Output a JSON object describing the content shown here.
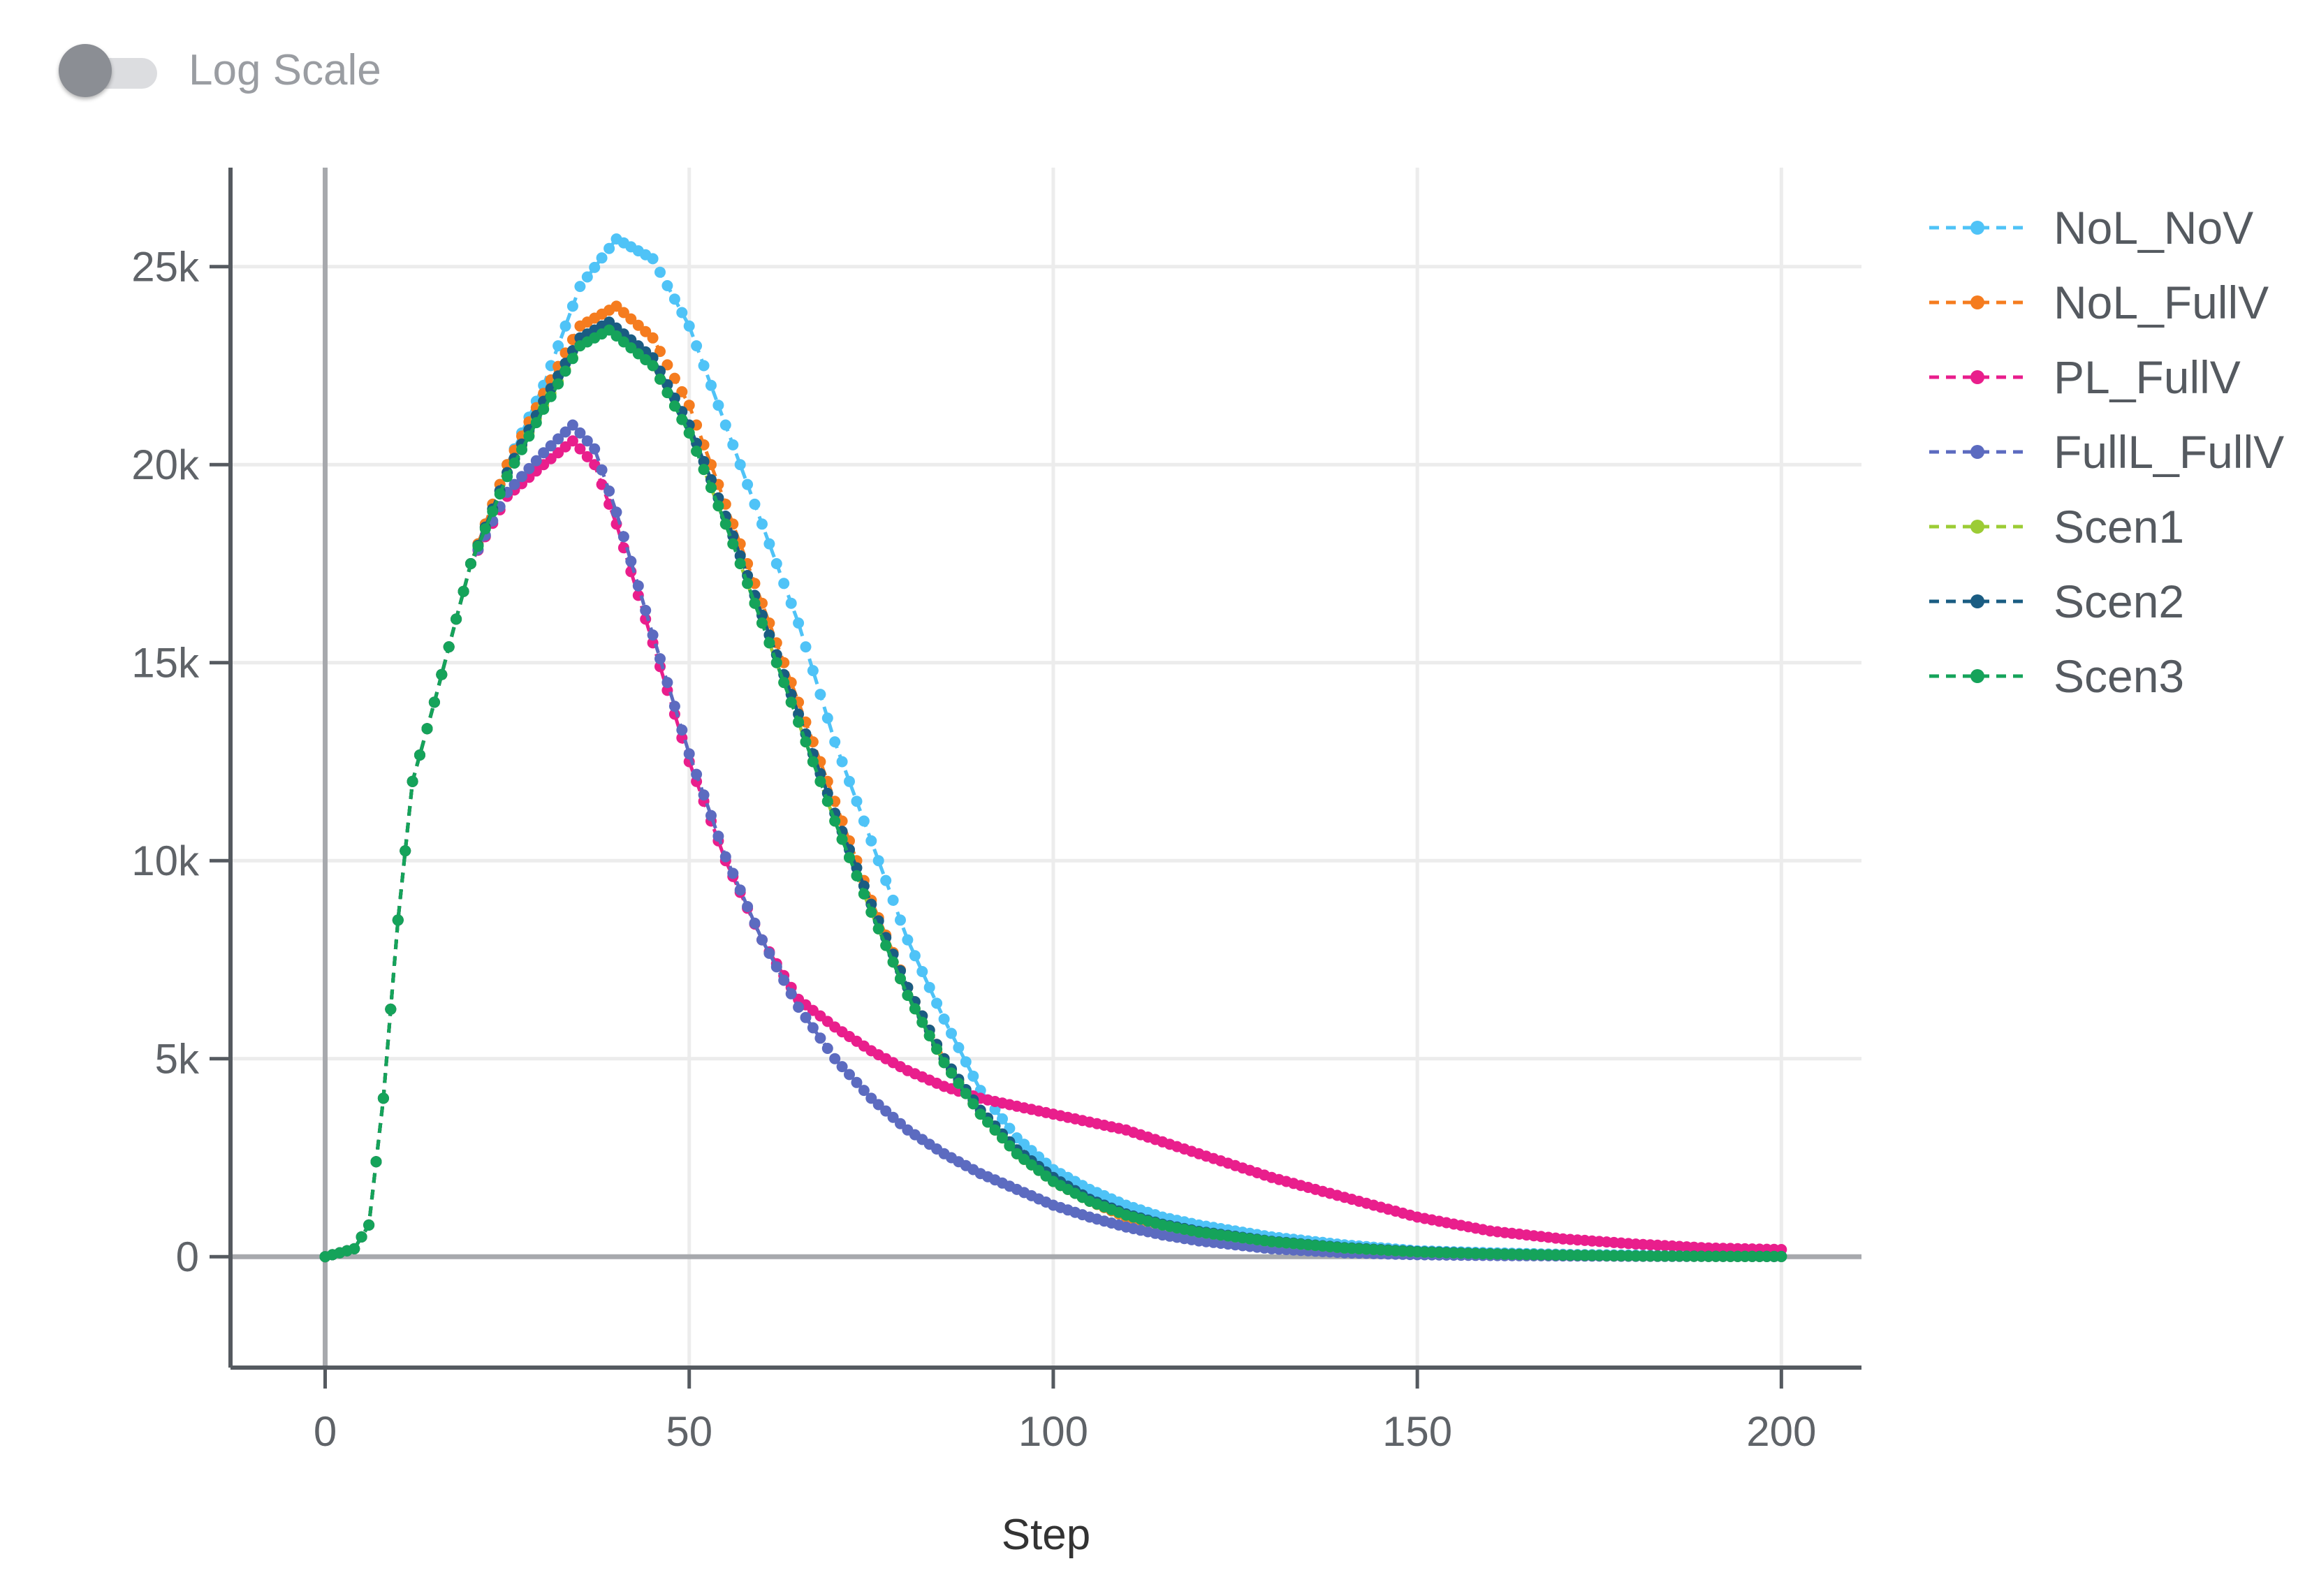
{
  "controls": {
    "log_scale": {
      "label": "Log Scale",
      "enabled": false
    }
  },
  "chart_data": {
    "type": "line",
    "title": "",
    "xlabel": "Step",
    "ylabel": "",
    "xlim": [
      -13,
      211
    ],
    "ylim": [
      -2800,
      27500
    ],
    "x_ticks": [
      0,
      50,
      100,
      150,
      200
    ],
    "x_tick_labels": [
      "0",
      "50",
      "100",
      "150",
      "200"
    ],
    "y_ticks": [
      0,
      5000,
      10000,
      15000,
      20000,
      25000
    ],
    "y_tick_labels": [
      "0",
      "5k",
      "10k",
      "15k",
      "20k",
      "25k"
    ],
    "grid": true,
    "legend_position": "top-right",
    "series": [
      {
        "name": "NoL_NoV",
        "color": "#4fc3f7",
        "points": [
          [
            0,
            0
          ],
          [
            4,
            200
          ],
          [
            6,
            800
          ],
          [
            8,
            4000
          ],
          [
            10,
            8500
          ],
          [
            12,
            12000
          ],
          [
            15,
            14000
          ],
          [
            20,
            17500
          ],
          [
            25,
            20000
          ],
          [
            30,
            22000
          ],
          [
            35,
            24500
          ],
          [
            40,
            25700
          ],
          [
            45,
            25200
          ],
          [
            50,
            23500
          ],
          [
            55,
            21000
          ],
          [
            60,
            18500
          ],
          [
            65,
            16000
          ],
          [
            70,
            13000
          ],
          [
            75,
            10500
          ],
          [
            80,
            8000
          ],
          [
            85,
            6000
          ],
          [
            90,
            4200
          ],
          [
            95,
            3000
          ],
          [
            100,
            2200
          ],
          [
            105,
            1700
          ],
          [
            110,
            1300
          ],
          [
            115,
            1000
          ],
          [
            120,
            800
          ],
          [
            130,
            500
          ],
          [
            140,
            300
          ],
          [
            150,
            150
          ],
          [
            160,
            100
          ],
          [
            170,
            60
          ],
          [
            180,
            40
          ],
          [
            190,
            20
          ],
          [
            200,
            10
          ]
        ]
      },
      {
        "name": "NoL_FullV",
        "color": "#f57c1f",
        "points": [
          [
            0,
            0
          ],
          [
            4,
            200
          ],
          [
            6,
            800
          ],
          [
            8,
            4000
          ],
          [
            10,
            8500
          ],
          [
            12,
            12000
          ],
          [
            15,
            14000
          ],
          [
            20,
            17500
          ],
          [
            25,
            20000
          ],
          [
            30,
            21800
          ],
          [
            35,
            23500
          ],
          [
            40,
            24000
          ],
          [
            45,
            23200
          ],
          [
            50,
            21500
          ],
          [
            55,
            19000
          ],
          [
            60,
            16500
          ],
          [
            65,
            14000
          ],
          [
            70,
            11500
          ],
          [
            75,
            9000
          ],
          [
            80,
            6800
          ],
          [
            85,
            5000
          ],
          [
            90,
            3600
          ],
          [
            95,
            2600
          ],
          [
            100,
            1900
          ],
          [
            105,
            1400
          ],
          [
            110,
            1000
          ],
          [
            115,
            800
          ],
          [
            120,
            600
          ],
          [
            130,
            350
          ],
          [
            140,
            200
          ],
          [
            150,
            100
          ],
          [
            160,
            60
          ],
          [
            170,
            40
          ],
          [
            180,
            20
          ],
          [
            190,
            10
          ],
          [
            200,
            5
          ]
        ]
      },
      {
        "name": "PL_FullV",
        "color": "#e91e8c",
        "points": [
          [
            0,
            0
          ],
          [
            4,
            200
          ],
          [
            6,
            800
          ],
          [
            8,
            4000
          ],
          [
            10,
            8500
          ],
          [
            12,
            12000
          ],
          [
            15,
            14000
          ],
          [
            20,
            17500
          ],
          [
            25,
            19200
          ],
          [
            30,
            20000
          ],
          [
            34,
            20600
          ],
          [
            37,
            20000
          ],
          [
            40,
            18500
          ],
          [
            45,
            15500
          ],
          [
            50,
            12500
          ],
          [
            55,
            10000
          ],
          [
            60,
            8000
          ],
          [
            65,
            6500
          ],
          [
            70,
            5800
          ],
          [
            75,
            5200
          ],
          [
            80,
            4700
          ],
          [
            85,
            4300
          ],
          [
            90,
            4000
          ],
          [
            95,
            3800
          ],
          [
            100,
            3600
          ],
          [
            110,
            3200
          ],
          [
            120,
            2600
          ],
          [
            130,
            2000
          ],
          [
            140,
            1500
          ],
          [
            150,
            1000
          ],
          [
            160,
            650
          ],
          [
            170,
            450
          ],
          [
            180,
            320
          ],
          [
            190,
            220
          ],
          [
            200,
            180
          ]
        ]
      },
      {
        "name": "FullL_FullV",
        "color": "#5c6bc0",
        "points": [
          [
            0,
            0
          ],
          [
            4,
            200
          ],
          [
            6,
            800
          ],
          [
            8,
            4000
          ],
          [
            10,
            8500
          ],
          [
            12,
            12000
          ],
          [
            15,
            14000
          ],
          [
            20,
            17500
          ],
          [
            25,
            19300
          ],
          [
            30,
            20300
          ],
          [
            34,
            21000
          ],
          [
            37,
            20400
          ],
          [
            40,
            18800
          ],
          [
            45,
            15700
          ],
          [
            50,
            12700
          ],
          [
            55,
            10100
          ],
          [
            60,
            8000
          ],
          [
            65,
            6300
          ],
          [
            70,
            5000
          ],
          [
            75,
            4000
          ],
          [
            80,
            3200
          ],
          [
            85,
            2600
          ],
          [
            90,
            2100
          ],
          [
            95,
            1700
          ],
          [
            100,
            1300
          ],
          [
            105,
            1000
          ],
          [
            110,
            750
          ],
          [
            115,
            550
          ],
          [
            120,
            400
          ],
          [
            130,
            200
          ],
          [
            140,
            100
          ],
          [
            150,
            50
          ],
          [
            160,
            30
          ],
          [
            170,
            20
          ],
          [
            180,
            10
          ],
          [
            190,
            5
          ],
          [
            200,
            3
          ]
        ]
      },
      {
        "name": "Scen1",
        "color": "#9ccc35",
        "points": [
          [
            0,
            0
          ],
          [
            4,
            200
          ],
          [
            6,
            800
          ],
          [
            8,
            4000
          ],
          [
            10,
            8500
          ],
          [
            12,
            12000
          ],
          [
            15,
            14000
          ],
          [
            20,
            17500
          ],
          [
            25,
            19800
          ],
          [
            30,
            21500
          ],
          [
            35,
            23000
          ],
          [
            39,
            23500
          ],
          [
            45,
            22500
          ],
          [
            50,
            20800
          ],
          [
            55,
            18500
          ],
          [
            60,
            16000
          ],
          [
            65,
            13500
          ],
          [
            70,
            11000
          ],
          [
            75,
            8700
          ],
          [
            80,
            6600
          ],
          [
            85,
            4900
          ],
          [
            90,
            3600
          ],
          [
            95,
            2600
          ],
          [
            100,
            1900
          ],
          [
            105,
            1400
          ],
          [
            110,
            1050
          ],
          [
            115,
            800
          ],
          [
            120,
            620
          ],
          [
            130,
            380
          ],
          [
            140,
            220
          ],
          [
            150,
            120
          ],
          [
            160,
            70
          ],
          [
            170,
            40
          ],
          [
            180,
            20
          ],
          [
            190,
            10
          ],
          [
            200,
            5
          ]
        ]
      },
      {
        "name": "Scen2",
        "color": "#1a5c82",
        "points": [
          [
            0,
            0
          ],
          [
            4,
            200
          ],
          [
            6,
            800
          ],
          [
            8,
            4000
          ],
          [
            10,
            8500
          ],
          [
            12,
            12000
          ],
          [
            15,
            14000
          ],
          [
            20,
            17500
          ],
          [
            25,
            19800
          ],
          [
            30,
            21600
          ],
          [
            35,
            23200
          ],
          [
            39,
            23600
          ],
          [
            45,
            22700
          ],
          [
            50,
            21000
          ],
          [
            55,
            18700
          ],
          [
            60,
            16200
          ],
          [
            65,
            13700
          ],
          [
            70,
            11200
          ],
          [
            75,
            8900
          ],
          [
            80,
            6800
          ],
          [
            85,
            5000
          ],
          [
            90,
            3700
          ],
          [
            95,
            2700
          ],
          [
            100,
            2000
          ],
          [
            105,
            1450
          ],
          [
            110,
            1080
          ],
          [
            115,
            820
          ],
          [
            120,
            640
          ],
          [
            130,
            390
          ],
          [
            140,
            230
          ],
          [
            150,
            130
          ],
          [
            160,
            75
          ],
          [
            170,
            40
          ],
          [
            180,
            22
          ],
          [
            190,
            12
          ],
          [
            200,
            6
          ]
        ]
      },
      {
        "name": "Scen3",
        "color": "#15a35a",
        "points": [
          [
            0,
            0
          ],
          [
            4,
            200
          ],
          [
            6,
            800
          ],
          [
            8,
            4000
          ],
          [
            10,
            8500
          ],
          [
            12,
            12000
          ],
          [
            15,
            14000
          ],
          [
            20,
            17500
          ],
          [
            25,
            19700
          ],
          [
            30,
            21400
          ],
          [
            35,
            23000
          ],
          [
            39,
            23400
          ],
          [
            45,
            22500
          ],
          [
            50,
            20800
          ],
          [
            55,
            18500
          ],
          [
            60,
            16000
          ],
          [
            65,
            13500
          ],
          [
            70,
            11000
          ],
          [
            75,
            8700
          ],
          [
            80,
            6600
          ],
          [
            85,
            4900
          ],
          [
            90,
            3600
          ],
          [
            95,
            2600
          ],
          [
            100,
            1900
          ],
          [
            105,
            1400
          ],
          [
            110,
            1050
          ],
          [
            115,
            800
          ],
          [
            120,
            620
          ],
          [
            130,
            380
          ],
          [
            140,
            220
          ],
          [
            150,
            120
          ],
          [
            160,
            70
          ],
          [
            170,
            40
          ],
          [
            180,
            20
          ],
          [
            190,
            10
          ],
          [
            200,
            5
          ]
        ]
      }
    ]
  }
}
